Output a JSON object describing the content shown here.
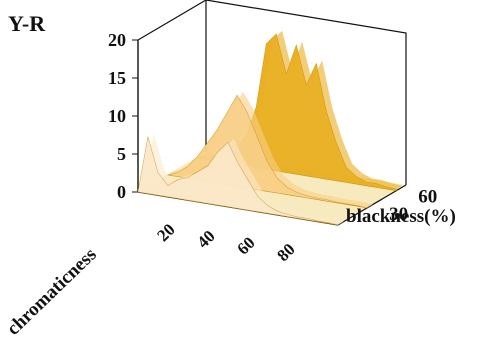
{
  "chart_data": {
    "type": "area",
    "title": "Y-R",
    "xlabel": "chromaticness",
    "ylabel": "blackness(%)",
    "zlabel": "",
    "x_ticks": [
      "20",
      "40",
      "60",
      "80"
    ],
    "y_ticks": [
      "30",
      "60"
    ],
    "z_ticks": [
      "0",
      "5",
      "10",
      "15",
      "20"
    ],
    "zlim": [
      0,
      20
    ],
    "xlim": [
      0,
      100
    ],
    "grid": false,
    "legend": "none",
    "x": [
      0,
      5,
      10,
      15,
      20,
      25,
      30,
      35,
      40,
      45,
      50,
      55,
      60,
      65,
      70,
      75,
      80,
      85,
      90,
      95,
      100
    ],
    "series": [
      {
        "blackness": 0,
        "color": "#fce8c9",
        "values": [
          0,
          7.5,
          3,
          1.5,
          2.5,
          3,
          4,
          5,
          7,
          8.5,
          6,
          4,
          2,
          1,
          0.5,
          0.3,
          0.2,
          0.2,
          0.1,
          0.1,
          0
        ]
      },
      {
        "blackness": 30,
        "color": "#f8cf86",
        "values": [
          0,
          0.5,
          1.5,
          3,
          5,
          7,
          9.5,
          12,
          10,
          7,
          4,
          2,
          1,
          0.5,
          0.3,
          0.2,
          0.2,
          0.1,
          0.1,
          0.1,
          0
        ]
      },
      {
        "blackness": 60,
        "color": "#e9ae1e",
        "values": [
          0,
          0.2,
          0.5,
          1,
          2,
          4,
          8,
          16.5,
          18,
          13,
          17,
          12,
          15,
          9,
          5,
          2,
          1,
          0.5,
          0.5,
          0.3,
          0.2
        ]
      }
    ],
    "colors": {
      "axis": "#111111",
      "floor": "#e6ba2e"
    }
  }
}
